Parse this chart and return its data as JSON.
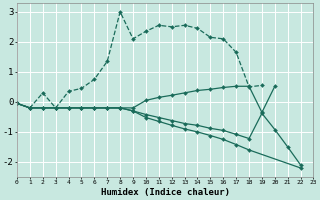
{
  "xlabel": "Humidex (Indice chaleur)",
  "bg_color": "#c8e8e0",
  "grid_color": "#ffffff",
  "line_color": "#1a6b5a",
  "x": [
    0,
    1,
    2,
    3,
    4,
    5,
    6,
    7,
    8,
    9,
    10,
    11,
    12,
    13,
    14,
    15,
    16,
    17,
    18,
    19,
    20,
    21,
    22,
    23
  ],
  "curve1_x": [
    0,
    1,
    2,
    3,
    4,
    5,
    6,
    7,
    8,
    9,
    10,
    11,
    12,
    13,
    14,
    15,
    16,
    17,
    18,
    19
  ],
  "curve1_y": [
    -0.05,
    -0.2,
    0.3,
    -0.2,
    0.35,
    0.45,
    0.75,
    1.35,
    3.0,
    2.1,
    2.35,
    2.55,
    2.5,
    2.55,
    2.45,
    2.15,
    2.1,
    1.65,
    0.5,
    0.55
  ],
  "curve2_x": [
    0,
    1,
    2,
    3,
    4,
    5,
    6,
    7,
    8,
    9,
    10,
    11,
    12,
    13,
    14,
    15,
    16,
    17,
    18,
    19,
    20
  ],
  "curve2_y": [
    -0.05,
    -0.2,
    -0.2,
    -0.2,
    -0.2,
    -0.2,
    -0.2,
    -0.2,
    -0.2,
    -0.2,
    0.05,
    0.15,
    0.22,
    0.3,
    0.38,
    0.42,
    0.48,
    0.52,
    0.52,
    -0.35,
    0.52
  ],
  "curve3_x": [
    0,
    1,
    2,
    3,
    4,
    5,
    6,
    7,
    8,
    9,
    10,
    11,
    12,
    13,
    14,
    15,
    16,
    17,
    18,
    19,
    20,
    21,
    22
  ],
  "curve3_y": [
    -0.05,
    -0.2,
    -0.2,
    -0.2,
    -0.2,
    -0.2,
    -0.2,
    -0.2,
    -0.2,
    -0.3,
    -0.42,
    -0.52,
    -0.62,
    -0.72,
    -0.78,
    -0.88,
    -0.95,
    -1.08,
    -1.22,
    -0.38,
    -0.92,
    -1.5,
    -2.1
  ],
  "curve4_x": [
    0,
    1,
    2,
    3,
    4,
    5,
    6,
    7,
    8,
    9,
    10,
    11,
    12,
    13,
    14,
    15,
    16,
    17,
    18,
    22
  ],
  "curve4_y": [
    -0.05,
    -0.2,
    -0.2,
    -0.2,
    -0.2,
    -0.2,
    -0.2,
    -0.2,
    -0.2,
    -0.3,
    -0.52,
    -0.65,
    -0.78,
    -0.9,
    -1.0,
    -1.12,
    -1.25,
    -1.42,
    -1.6,
    -2.2
  ],
  "ylim": [
    -2.5,
    3.3
  ],
  "yticks": [
    -2,
    -1,
    0,
    1,
    2,
    3
  ],
  "xlim": [
    0,
    23
  ]
}
